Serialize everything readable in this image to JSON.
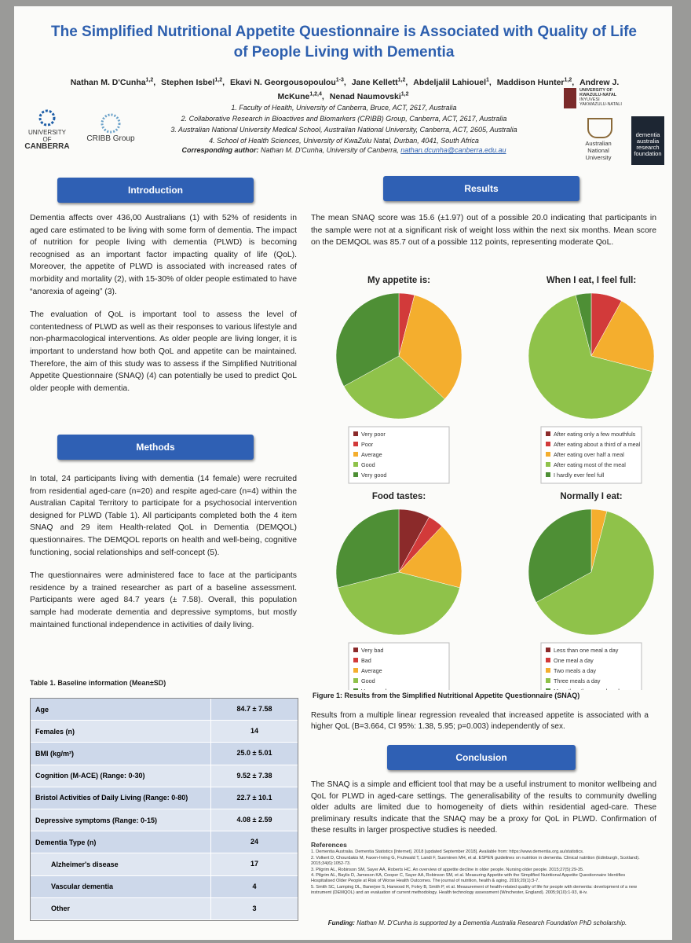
{
  "header": {
    "title": "The Simplified Nutritional Appetite Questionnaire is Associated with Quality of Life of People Living with Dementia",
    "authors": [
      {
        "name": "Nathan M. D'Cunha",
        "aff": "1,2"
      },
      {
        "name": "Stephen Isbel",
        "aff": "1,2"
      },
      {
        "name": "Ekavi N. Georgousopoulou",
        "aff": "1-3"
      },
      {
        "name": "Jane Kellett",
        "aff": "1,2"
      },
      {
        "name": "Abdeljalil Lahiouel",
        "aff": "1"
      },
      {
        "name": "Maddison Hunter",
        "aff": "1,2"
      },
      {
        "name": "Andrew J. McKune",
        "aff": "1,2,4"
      },
      {
        "name": "Nenad Naumovski",
        "aff": "1,2"
      }
    ],
    "affiliations": [
      "1. Faculty of Health, University of Canberra, Bruce, ACT, 2617, Australia",
      "2. Collaborative Research in Bioactives and Biomarkers (CRIBB) Group, Canberra, ACT, 2617, Australia",
      "3. Australian National University Medical School, Australian National University, Canberra, ACT, 2605, Australia",
      "4. School of Health Sciences, University of KwaZulu Natal, Durban, 4041, South Africa"
    ],
    "corresponding_label": "Corresponding author:",
    "corresponding": "Nathan M. D'Cunha, University of Canberra,",
    "email": "nathan.dcunha@canberra.edu.au"
  },
  "logos": {
    "canberra": [
      "UNIVERSITY OF",
      "CANBERRA"
    ],
    "cribb": "CRIBB Group",
    "kzn": [
      "UNIVERSITY OF",
      "KWAZULU-NATAL",
      "INYUVESI",
      "YAKWAZULU-NATALI"
    ],
    "anu": [
      "Australian",
      "National",
      "University"
    ],
    "dementia": [
      "dementia",
      "australia",
      "research",
      "foundation"
    ]
  },
  "introduction": {
    "heading": "Introduction",
    "paragraphs": [
      "Dementia affects over 436,00 Australians (1) with 52% of residents in aged care estimated to be living with some form of dementia. The impact of nutrition for people living with dementia (PLWD) is becoming recognised as an important factor impacting quality of life (QoL). Moreover, the appetite of PLWD is associated with increased rates of morbidity and mortality (2), with 15-30% of older people estimated to have “anorexia of ageing” (3).",
      "The evaluation of QoL is important tool to assess the level of contentedness of PLWD as well as their responses to various lifestyle and non-pharmacological interventions. As older people are living longer, it is important to understand how both QoL and appetite can be maintained. Therefore, the aim of this study was to assess if the Simplified Nutritional Appetite Questionnaire (SNAQ) (4) can potentially be used to predict QoL older people with dementia."
    ]
  },
  "methods": {
    "heading": "Methods",
    "paragraphs": [
      "In total, 24 participants living with dementia (14 female) were recruited from residential aged-care (n=20) and respite aged-care (n=4) within the Australian Capital Territory to participate for a psychosocial intervention designed for PLWD (Table 1). All participants completed both the 4 item SNAQ and 29 item Health-related QoL in Dementia (DEMQOL) questionnaires. The DEMQOL reports on health and well-being, cognitive functioning, social relationships and self-concept (5).",
      "The questionnaires were administered face to face at the participants residence by a trained researcher as part of a baseline assessment. Participants were aged 84.7 years (± 7.58). Overall, this population sample had moderate dementia and depressive symptoms, but mostly maintained functional independence in activities of daily living."
    ]
  },
  "table": {
    "caption": "Table 1. Baseline information (Mean±SD)",
    "rows": [
      [
        "Age",
        "84.7 ± 7.58"
      ],
      [
        "Females (n)",
        "14"
      ],
      [
        "BMI (kg/m²)",
        "25.0 ± 5.01"
      ],
      [
        "Cognition (M-ACE) (Range: 0-30)",
        "9.52 ± 7.38"
      ],
      [
        "Bristol Activities of Daily Living (Range: 0-80)",
        "22.7 ± 10.1"
      ],
      [
        "Depressive symptoms (Range: 0-15)",
        "4.08 ± 2.59"
      ],
      [
        "Dementia Type (n)",
        "24"
      ],
      [
        "Alzheimer's disease",
        "17"
      ],
      [
        "Vascular dementia",
        "4"
      ],
      [
        "Other",
        "3"
      ]
    ]
  },
  "results": {
    "heading": "Results",
    "intro": "The mean SNAQ score was 15.6 (±1.97) out of a possible 20.0 indicating that participants in the sample were not at a significant risk of weight loss within the next six months. Mean score on the DEMQOL was 85.7 out of a possible 112 points, representing moderate QoL.",
    "figure_caption": "Figure 1:  Results from the Simplified Nutritional Appetite Questionnaire (SNAQ)",
    "regression": "Results from a multiple linear regression revealed that increased appetite is associated with a higher QoL (B=3.664, CI 95%: 1.38, 5.95; p=0.003) independently of sex."
  },
  "chart_data": [
    {
      "type": "pie",
      "title": "My appetite is:",
      "categories": [
        "Very poor",
        "Poor",
        "Average",
        "Good",
        "Very good"
      ],
      "values": [
        0,
        4,
        33,
        30,
        33
      ],
      "colors": [
        "#8b2a2a",
        "#d23a3a",
        "#f4ae2e",
        "#8fc24a",
        "#4e8f35"
      ]
    },
    {
      "type": "pie",
      "title": "When I eat, I feel full:",
      "categories": [
        "After eating only a few mouthfuls",
        "After eating about a third of a meal",
        "After eating over half a meal",
        "After eating most of the meal",
        "I hardly ever feel full"
      ],
      "values": [
        0,
        8,
        21,
        67,
        4
      ],
      "colors": [
        "#8b2a2a",
        "#d23a3a",
        "#f4ae2e",
        "#8fc24a",
        "#4e8f35"
      ]
    },
    {
      "type": "pie",
      "title": "Food tastes:",
      "categories": [
        "Very bad",
        "Bad",
        "Average",
        "Good",
        "Very good"
      ],
      "values": [
        8,
        4,
        17,
        42,
        29
      ],
      "colors": [
        "#8b2a2a",
        "#d23a3a",
        "#f4ae2e",
        "#8fc24a",
        "#4e8f35"
      ]
    },
    {
      "type": "pie",
      "title": "Normally I eat:",
      "categories": [
        "Less than one meal a day",
        "One meal a day",
        "Two meals a day",
        "Three meals a day",
        "More than three meals a day"
      ],
      "values": [
        0,
        0,
        4,
        63,
        33
      ],
      "colors": [
        "#8b2a2a",
        "#d23a3a",
        "#f4ae2e",
        "#8fc24a",
        "#4e8f35"
      ]
    }
  ],
  "conclusion": {
    "heading": "Conclusion",
    "text": "The SNAQ is a simple and efficient tool that may be a useful instrument to monitor wellbeing and QoL for PLWD in aged-care settings. The generalisability of the results to community dwelling older adults are limited due to homogeneity of diets within residential aged-care. These preliminary results indicate that the SNAQ may be a proxy for QoL in PLWD. Confirmation of these results in larger prospective studies is needed."
  },
  "references": {
    "heading": "References",
    "items": [
      "1. Dementia Australia. Dementia Statistics [Internet]. 2018 [updated September 2018]. Available from: https://www.dementia.org.au/statistics.",
      "2. Volkert D, Chourdakis M, Faxen-Irving G, Fruhwald T, Landi F, Suominen MH, et al. ESPEN guidelines on nutrition in dementia. Clinical nutrition (Edinburgh, Scotland). 2015;34(6):1052-73.",
      "3. Pilgrim AL, Robinson SM, Sayer AA, Roberts HC. An overview of appetite decline in older people. Nursing older people. 2015;27(5):29-35.",
      "4. Pilgrim AL, Baylis D, Jameson KA, Cooper C, Sayer AA, Robinson SM, et al. Measuring Appetite with the Simplified Nutritional Appetite Questionnaire Identifies Hospitalised Older People at Risk of Worse Health Outcomes. The journal of nutrition, health & aging. 2016;20(1):3-7.",
      "5. Smith SC, Lamping DL, Banerjee S, Harwood R, Foley B, Smith P, et al. Measurement of health-related quality of life for people with dementia: development of a new instrument (DEMQOL) and an evaluation of current methodology. Health technology assessment (Winchester, England). 2005;9(10):1-93, iii-iv."
    ]
  },
  "funding": {
    "label": "Funding:",
    "text": "Nathan M. D'Cunha is supported by a Dementia Australia Research Foundation PhD scholarship."
  }
}
